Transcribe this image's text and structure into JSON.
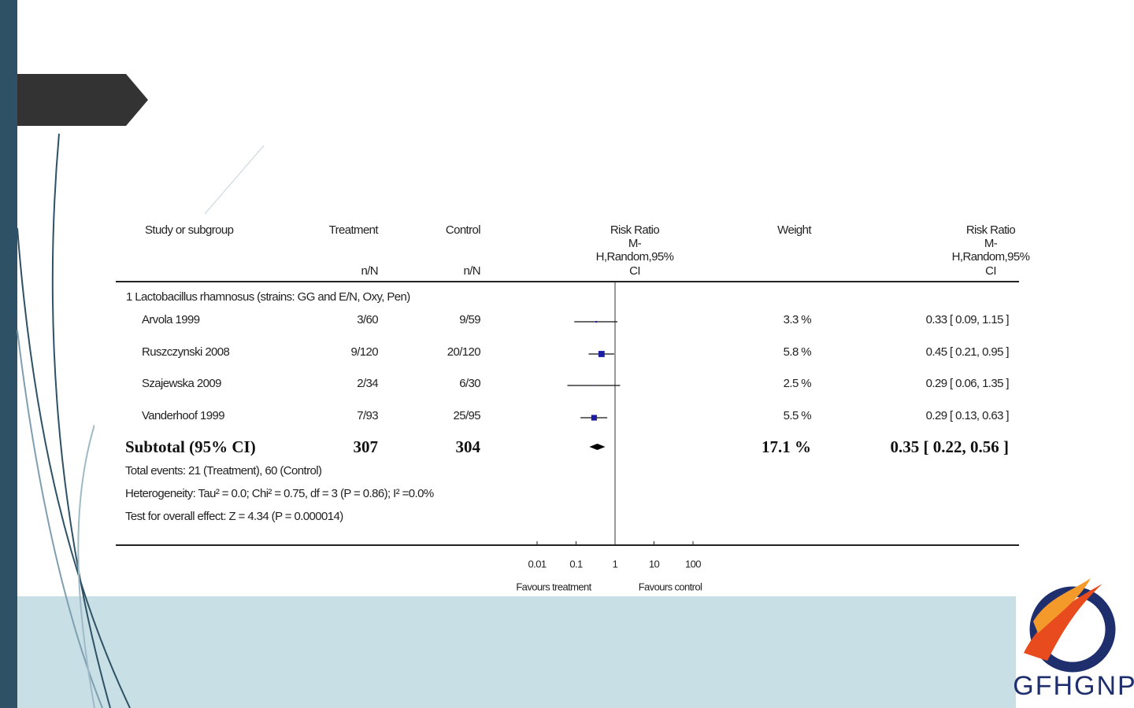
{
  "logo": "GFHGNP",
  "chart_data": {
    "type": "forest",
    "header": {
      "study": "Study or subgroup",
      "treatment": "Treatment",
      "control": "Control",
      "treatment_unit": "n/N",
      "control_unit": "n/N",
      "effect": [
        "Risk Ratio",
        "M-",
        "H,Random,95%",
        "CI"
      ],
      "weight": "Weight",
      "effect_text": [
        "Risk Ratio",
        "M-",
        "H,Random,95%",
        "CI"
      ]
    },
    "group": "1 Lactobacillus rhamnosus (strains: GG and E/N, Oxy, Pen)",
    "studies": [
      {
        "name": "Arvola 1999",
        "treatment": "3/60",
        "control": "9/59",
        "rr": 0.33,
        "ci_lower": 0.09,
        "ci_upper": 1.15,
        "weight": 3.3,
        "weight_label": "3.3 %",
        "rr_label": "0.33 [ 0.09, 1.15 ]"
      },
      {
        "name": "Ruszczynski 2008",
        "treatment": "9/120",
        "control": "20/120",
        "rr": 0.45,
        "ci_lower": 0.21,
        "ci_upper": 0.95,
        "weight": 5.8,
        "weight_label": "5.8 %",
        "rr_label": "0.45 [ 0.21, 0.95 ]"
      },
      {
        "name": "Szajewska 2009",
        "treatment": "2/34",
        "control": "6/30",
        "rr": 0.29,
        "ci_lower": 0.06,
        "ci_upper": 1.35,
        "weight": 2.5,
        "weight_label": "2.5 %",
        "rr_label": "0.29 [ 0.06, 1.35 ]"
      },
      {
        "name": "Vanderhoof 1999",
        "treatment": "7/93",
        "control": "25/95",
        "rr": 0.29,
        "ci_lower": 0.13,
        "ci_upper": 0.63,
        "weight": 5.5,
        "weight_label": "5.5 %",
        "rr_label": "0.29 [ 0.13, 0.63 ]"
      }
    ],
    "subtotal": {
      "name": "Subtotal (95% CI)",
      "treatment": 307,
      "control": 304,
      "rr": 0.35,
      "ci_lower": 0.22,
      "ci_upper": 0.56,
      "weight": 17.1,
      "weight_label": "17.1 %",
      "rr_label": "0.35 [ 0.22, 0.56 ]"
    },
    "footnotes": [
      "Total events: 21 (Treatment), 60 (Control)",
      "Heterogeneity: Tau² = 0.0; Chi² = 0.75, df = 3 (P = 0.86); I² =0.0%",
      "Test for overall effect: Z = 4.34 (P = 0.000014)"
    ],
    "log_scale": true,
    "xlim": [
      0.01,
      100
    ],
    "xticks": [
      0.01,
      0.1,
      1,
      10,
      100
    ],
    "xlabel_left": "Favours treatment",
    "xlabel_right": "Favours control",
    "color": "#1c1ca0"
  }
}
